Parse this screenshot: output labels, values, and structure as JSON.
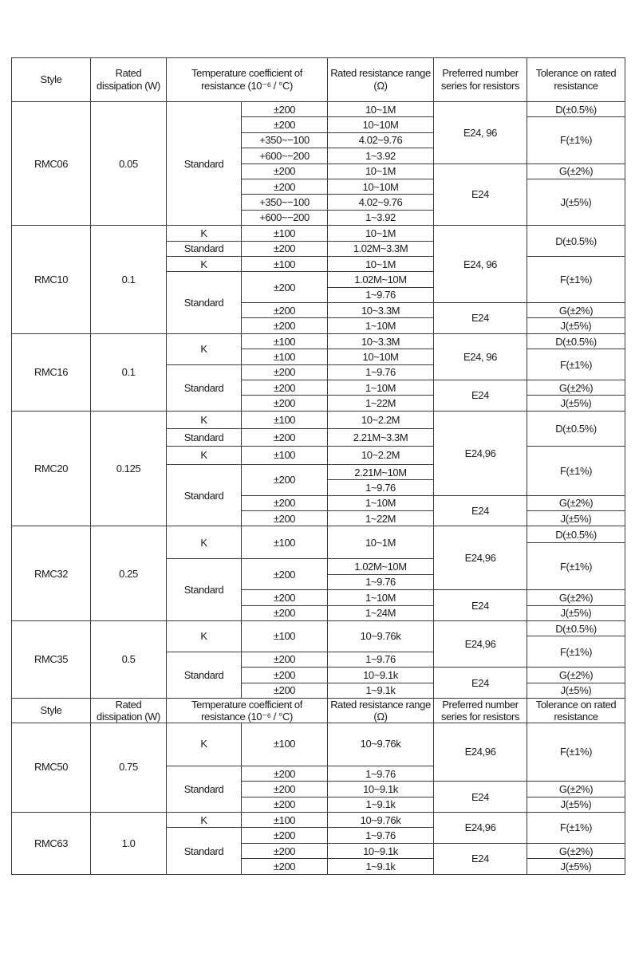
{
  "table": {
    "rows": [
      [
        {
          "t": "Style"
        },
        {
          "t": "Rated dissipation (W)"
        },
        {
          "t": "Temperature coefficient of resistance (10⁻⁶ / °C)",
          "cs": 2
        },
        {
          "t": "Rated resistance range (Ω)"
        },
        {
          "t": "Preferred number series for resistors"
        },
        {
          "t": "Tolerance on rated resistance"
        }
      ],
      [
        {
          "t": "RMC06",
          "rs": 8
        },
        {
          "t": "0.05",
          "rs": 8
        },
        {
          "t": "Standard",
          "rs": 8
        },
        {
          "t": "±200"
        },
        {
          "t": "10~1M"
        },
        {
          "t": "E24, 96",
          "rs": 4
        },
        {
          "t": "D(±0.5%)"
        }
      ],
      [
        {
          "t": "±200"
        },
        {
          "t": "10~10M"
        },
        {
          "t": "F(±1%)",
          "rs": 3
        }
      ],
      [
        {
          "t": "+350~−100"
        },
        {
          "t": "4.02~9.76"
        }
      ],
      [
        {
          "t": "+600~−200"
        },
        {
          "t": "1~3.92"
        }
      ],
      [
        {
          "t": "±200"
        },
        {
          "t": "10~1M"
        },
        {
          "t": "E24",
          "rs": 4
        },
        {
          "t": "G(±2%)"
        }
      ],
      [
        {
          "t": "±200"
        },
        {
          "t": "10~10M"
        },
        {
          "t": "J(±5%)",
          "rs": 3
        }
      ],
      [
        {
          "t": "+350~−100"
        },
        {
          "t": "4.02~9.76"
        }
      ],
      [
        {
          "t": "+600~−200"
        },
        {
          "t": "1~3.92"
        }
      ],
      [
        {
          "t": "RMC10",
          "rs": 7
        },
        {
          "t": "0.1",
          "rs": 7
        },
        {
          "t": "K"
        },
        {
          "t": "±100"
        },
        {
          "t": "10~1M"
        },
        {
          "t": "E24, 96",
          "rs": 5
        },
        {
          "t": "D(±0.5%)",
          "rs": 2
        }
      ],
      [
        {
          "t": "Standard"
        },
        {
          "t": "±200"
        },
        {
          "t": "1.02M~3.3M"
        }
      ],
      [
        {
          "t": "K"
        },
        {
          "t": "±100"
        },
        {
          "t": "10~1M"
        },
        {
          "t": "F(±1%)",
          "rs": 3
        }
      ],
      [
        {
          "t": "Standard",
          "rs": 4
        },
        {
          "t": "±200",
          "rs": 2
        },
        {
          "t": "1.02M~10M"
        }
      ],
      [
        {
          "t": "1~9.76"
        }
      ],
      [
        {
          "t": "±200"
        },
        {
          "t": "10~3.3M"
        },
        {
          "t": "E24",
          "rs": 2
        },
        {
          "t": "G(±2%)"
        }
      ],
      [
        {
          "t": "±200"
        },
        {
          "t": "1~10M"
        },
        {
          "t": "J(±5%)"
        }
      ],
      [
        {
          "t": "RMC16",
          "rs": 5
        },
        {
          "t": "0.1",
          "rs": 5
        },
        {
          "t": "K",
          "rs": 2
        },
        {
          "t": "±100"
        },
        {
          "t": "10~3.3M"
        },
        {
          "t": "E24, 96",
          "rs": 3
        },
        {
          "t": "D(±0.5%)"
        }
      ],
      [
        {
          "t": "±100"
        },
        {
          "t": "10~10M"
        },
        {
          "t": "F(±1%)",
          "rs": 2
        }
      ],
      [
        {
          "t": "Standard",
          "rs": 3
        },
        {
          "t": "±200"
        },
        {
          "t": "1~9.76"
        }
      ],
      [
        {
          "t": "±200"
        },
        {
          "t": "1~10M"
        },
        {
          "t": "E24",
          "rs": 2
        },
        {
          "t": "G(±2%)"
        }
      ],
      [
        {
          "t": "±200"
        },
        {
          "t": "1~22M"
        },
        {
          "t": "J(±5%)"
        }
      ],
      [
        {
          "t": "RMC20",
          "rs": 7
        },
        {
          "t": "0.125",
          "rs": 7
        },
        {
          "t": "K"
        },
        {
          "t": "±100"
        },
        {
          "t": "10~2.2M"
        },
        {
          "t": "E24,96",
          "rs": 5
        },
        {
          "t": "D(±0.5%)",
          "rs": 2
        }
      ],
      [
        {
          "t": "Standard"
        },
        {
          "t": "±200"
        },
        {
          "t": "2.21M~3.3M"
        }
      ],
      [
        {
          "t": "K"
        },
        {
          "t": "±100"
        },
        {
          "t": "10~2.2M"
        },
        {
          "t": "F(±1%)",
          "rs": 3
        }
      ],
      [
        {
          "t": "Standard",
          "rs": 4
        },
        {
          "t": "±200",
          "rs": 2
        },
        {
          "t": "2.21M~10M"
        }
      ],
      [
        {
          "t": "1~9.76"
        }
      ],
      [
        {
          "t": "±200"
        },
        {
          "t": "1~10M"
        },
        {
          "t": "E24",
          "rs": 2
        },
        {
          "t": "G(±2%)"
        }
      ],
      [
        {
          "t": "±200"
        },
        {
          "t": "1~22M"
        },
        {
          "t": "J(±5%)"
        }
      ],
      [
        {
          "t": "RMC32",
          "rs": 6
        },
        {
          "t": "0.25",
          "rs": 6
        },
        {
          "t": "K",
          "rs": 2
        },
        {
          "t": "±100",
          "rs": 2
        },
        {
          "t": "10~1M",
          "rs": 2
        },
        {
          "t": "E24,96",
          "rs": 4
        },
        {
          "t": "D(±0.5%)"
        }
      ],
      [
        {
          "t": "F(±1%)",
          "rs": 3
        }
      ],
      [
        {
          "t": "Standard",
          "rs": 4
        },
        {
          "t": "±200",
          "rs": 2
        },
        {
          "t": "1.02M~10M"
        }
      ],
      [
        {
          "t": "1~9.76"
        }
      ],
      [
        {
          "t": "±200"
        },
        {
          "t": "1~10M"
        },
        {
          "t": "E24",
          "rs": 2
        },
        {
          "t": "G(±2%)"
        }
      ],
      [
        {
          "t": "±200"
        },
        {
          "t": "1~24M"
        },
        {
          "t": "J(±5%)"
        }
      ],
      [
        {
          "t": "RMC35",
          "rs": 5
        },
        {
          "t": "0.5",
          "rs": 5
        },
        {
          "t": "K",
          "rs": 2
        },
        {
          "t": "±100",
          "rs": 2
        },
        {
          "t": "10~9.76k",
          "rs": 2
        },
        {
          "t": "E24,96",
          "rs": 3
        },
        {
          "t": "D(±0.5%)"
        }
      ],
      [
        {
          "t": "F(±1%)",
          "rs": 2
        }
      ],
      [
        {
          "t": "Standard",
          "rs": 3
        },
        {
          "t": "±200"
        },
        {
          "t": "1~9.76"
        }
      ],
      [
        {
          "t": "±200"
        },
        {
          "t": "10~9.1k"
        },
        {
          "t": "E24",
          "rs": 2
        },
        {
          "t": "G(±2%)"
        }
      ],
      [
        {
          "t": "±200"
        },
        {
          "t": "1~9.1k"
        },
        {
          "t": "J(±5%)"
        }
      ],
      [
        {
          "t": "Style"
        },
        {
          "t": "Rated dissipation (W)"
        },
        {
          "t": "Temperature coefficient of resistance (10⁻⁶ / °C)",
          "cs": 2
        },
        {
          "t": "Rated resistance range (Ω)"
        },
        {
          "t": "Preferred number series for resistors"
        },
        {
          "t": "Tolerance on rated resistance"
        }
      ],
      [
        {
          "t": "RMC50",
          "rs": 4
        },
        {
          "t": "0.75",
          "rs": 4
        },
        {
          "t": "K"
        },
        {
          "t": "±100"
        },
        {
          "t": "10~9.76k"
        },
        {
          "t": "E24,96",
          "rs": 2
        },
        {
          "t": "F(±1%)",
          "rs": 2
        }
      ],
      [
        {
          "t": "Standard",
          "rs": 3
        },
        {
          "t": "±200"
        },
        {
          "t": "1~9.76"
        }
      ],
      [
        {
          "t": "±200"
        },
        {
          "t": "10~9.1k"
        },
        {
          "t": "E24",
          "rs": 2
        },
        {
          "t": "G(±2%)"
        }
      ],
      [
        {
          "t": "±200"
        },
        {
          "t": "1~9.1k"
        },
        {
          "t": "J(±5%)"
        }
      ],
      [
        {
          "t": "RMC63",
          "rs": 4
        },
        {
          "t": "1.0",
          "rs": 4
        },
        {
          "t": "K"
        },
        {
          "t": "±100"
        },
        {
          "t": "10~9.76k"
        },
        {
          "t": "E24,96",
          "rs": 2
        },
        {
          "t": "F(±1%)",
          "rs": 2
        }
      ],
      [
        {
          "t": "Standard",
          "rs": 3
        },
        {
          "t": "±200"
        },
        {
          "t": "1~9.76"
        }
      ],
      [
        {
          "t": "±200"
        },
        {
          "t": "10~9.1k"
        },
        {
          "t": "E24",
          "rs": 2
        },
        {
          "t": "G(±2%)"
        }
      ],
      [
        {
          "t": "±200"
        },
        {
          "t": "1~9.1k"
        },
        {
          "t": "J(±5%)"
        }
      ]
    ]
  }
}
